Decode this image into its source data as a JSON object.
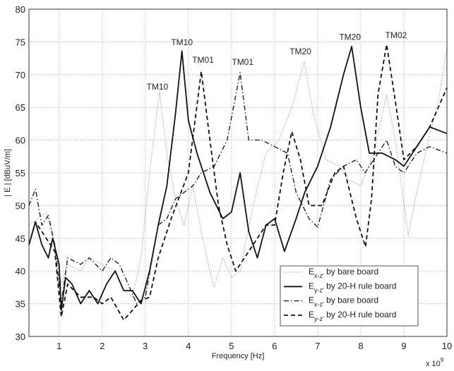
{
  "chart_data": {
    "type": "line",
    "xlabel": "Frequency [Hz]",
    "x_multiplier": "x 10",
    "x_multiplier_exp": "9",
    "ylabel": "| E | [dBuV/m]",
    "xlim": [
      0.3,
      10
    ],
    "ylim": [
      30,
      80
    ],
    "xticks": [
      1,
      2,
      3,
      4,
      5,
      6,
      7,
      8,
      9,
      10
    ],
    "yticks": [
      30,
      35,
      40,
      45,
      50,
      55,
      60,
      65,
      70,
      75,
      80
    ],
    "grid": true,
    "legend_position": "bottom-right",
    "series": [
      {
        "legend": {
          "main": "E",
          "sub": "x-z'",
          "rest": " by bare board"
        },
        "style": "dotted",
        "color": "#8a8a8a",
        "points": [
          [
            0.3,
            47
          ],
          [
            0.5,
            48
          ],
          [
            0.7,
            49
          ],
          [
            0.9,
            44
          ],
          [
            1.05,
            38
          ],
          [
            1.2,
            41
          ],
          [
            1.5,
            40
          ],
          [
            1.7,
            42
          ],
          [
            2.0,
            41
          ],
          [
            2.3,
            40
          ],
          [
            2.5,
            37
          ],
          [
            2.7,
            36
          ],
          [
            2.9,
            42
          ],
          [
            3.1,
            55
          ],
          [
            3.33,
            67.4
          ],
          [
            3.5,
            58
          ],
          [
            3.7,
            51
          ],
          [
            3.9,
            47
          ],
          [
            4.1,
            53
          ],
          [
            4.3,
            46
          ],
          [
            4.5,
            40
          ],
          [
            4.6,
            37.5
          ],
          [
            4.8,
            42
          ],
          [
            5.0,
            39
          ],
          [
            5.2,
            40
          ],
          [
            5.5,
            50
          ],
          [
            5.8,
            58
          ],
          [
            6.1,
            60
          ],
          [
            6.4,
            65
          ],
          [
            6.69,
            72
          ],
          [
            6.9,
            64
          ],
          [
            7.2,
            57
          ],
          [
            7.5,
            56
          ],
          [
            7.7,
            54
          ],
          [
            8.0,
            53
          ],
          [
            8.3,
            58
          ],
          [
            8.6,
            66.9
          ],
          [
            8.8,
            60
          ],
          [
            9.1,
            45.5
          ],
          [
            9.3,
            52
          ],
          [
            9.5,
            58
          ],
          [
            9.8,
            66
          ],
          [
            10,
            74
          ]
        ]
      },
      {
        "legend": {
          "main": "E",
          "sub": "y-z'",
          "rest": " by 20-H rule board"
        },
        "style": "solid",
        "color": "#111111",
        "points": [
          [
            0.3,
            44
          ],
          [
            0.45,
            47.5
          ],
          [
            0.6,
            44
          ],
          [
            0.75,
            42
          ],
          [
            0.85,
            45
          ],
          [
            1.0,
            41
          ],
          [
            1.05,
            34
          ],
          [
            1.15,
            39
          ],
          [
            1.3,
            38
          ],
          [
            1.5,
            35
          ],
          [
            1.7,
            37
          ],
          [
            1.9,
            35
          ],
          [
            2.1,
            38
          ],
          [
            2.3,
            40
          ],
          [
            2.5,
            37
          ],
          [
            2.7,
            37
          ],
          [
            2.9,
            35
          ],
          [
            3.1,
            40
          ],
          [
            3.3,
            47
          ],
          [
            3.5,
            53
          ],
          [
            3.7,
            64
          ],
          [
            3.85,
            73.6
          ],
          [
            4.0,
            63
          ],
          [
            4.2,
            58
          ],
          [
            4.5,
            52
          ],
          [
            4.8,
            48
          ],
          [
            5.0,
            49
          ],
          [
            5.2,
            55
          ],
          [
            5.4,
            46
          ],
          [
            5.6,
            42
          ],
          [
            5.8,
            47
          ],
          [
            6.0,
            48
          ],
          [
            6.23,
            43
          ],
          [
            6.5,
            48
          ],
          [
            6.7,
            52
          ],
          [
            7.0,
            56
          ],
          [
            7.3,
            62
          ],
          [
            7.6,
            70
          ],
          [
            7.79,
            74.3
          ],
          [
            8.0,
            65
          ],
          [
            8.2,
            58
          ],
          [
            8.5,
            58
          ],
          [
            8.8,
            57
          ],
          [
            9.0,
            56
          ],
          [
            9.3,
            59
          ],
          [
            9.6,
            62
          ],
          [
            10,
            61
          ]
        ]
      },
      {
        "legend": {
          "main": "E",
          "sub": "x-z'",
          "rest": " by bare board"
        },
        "style": "dashdot",
        "color": "#222222",
        "points": [
          [
            0.3,
            50
          ],
          [
            0.45,
            52.5
          ],
          [
            0.6,
            47
          ],
          [
            0.75,
            48.5
          ],
          [
            0.9,
            44
          ],
          [
            1.05,
            35
          ],
          [
            1.2,
            42
          ],
          [
            1.5,
            41
          ],
          [
            1.7,
            42
          ],
          [
            2.0,
            40
          ],
          [
            2.2,
            42
          ],
          [
            2.4,
            41
          ],
          [
            2.6,
            38
          ],
          [
            2.8,
            35
          ],
          [
            3.0,
            36
          ],
          [
            3.3,
            47
          ],
          [
            3.5,
            48
          ],
          [
            3.7,
            51
          ],
          [
            3.9,
            52
          ],
          [
            4.1,
            53
          ],
          [
            4.3,
            55
          ],
          [
            4.6,
            56
          ],
          [
            4.9,
            60
          ],
          [
            5.2,
            70.3
          ],
          [
            5.4,
            60
          ],
          [
            5.7,
            60
          ],
          [
            6.0,
            59
          ],
          [
            6.3,
            58
          ],
          [
            6.5,
            52
          ],
          [
            6.8,
            48
          ],
          [
            7.0,
            46.7
          ],
          [
            7.3,
            54
          ],
          [
            7.6,
            56
          ],
          [
            7.9,
            57
          ],
          [
            8.1,
            55
          ],
          [
            8.4,
            58
          ],
          [
            8.6,
            60
          ],
          [
            8.8,
            56
          ],
          [
            9.0,
            55
          ],
          [
            9.3,
            58
          ],
          [
            9.6,
            59
          ],
          [
            10,
            58
          ]
        ]
      },
      {
        "legend": {
          "main": "E",
          "sub": "y-z'",
          "rest": " by 20-H rule board"
        },
        "style": "dashed",
        "color": "#111111",
        "points": [
          [
            0.3,
            44
          ],
          [
            0.45,
            47.5
          ],
          [
            0.7,
            45
          ],
          [
            0.9,
            43
          ],
          [
            1.05,
            33
          ],
          [
            1.2,
            38
          ],
          [
            1.5,
            36
          ],
          [
            1.8,
            36
          ],
          [
            2.0,
            35
          ],
          [
            2.2,
            36
          ],
          [
            2.5,
            32.5
          ],
          [
            2.7,
            34
          ],
          [
            2.9,
            35.5
          ],
          [
            3.1,
            36
          ],
          [
            3.3,
            42
          ],
          [
            3.6,
            48
          ],
          [
            4.0,
            55
          ],
          [
            4.3,
            70.5
          ],
          [
            4.5,
            60
          ],
          [
            4.7,
            50
          ],
          [
            4.9,
            44
          ],
          [
            5.1,
            40
          ],
          [
            5.3,
            42
          ],
          [
            5.5,
            44
          ],
          [
            5.8,
            47
          ],
          [
            6.0,
            47
          ],
          [
            6.2,
            55
          ],
          [
            6.4,
            61.3
          ],
          [
            6.6,
            57
          ],
          [
            6.8,
            50
          ],
          [
            7.1,
            50
          ],
          [
            7.4,
            55
          ],
          [
            7.6,
            56
          ],
          [
            7.9,
            48
          ],
          [
            8.11,
            43.7
          ],
          [
            8.25,
            51
          ],
          [
            8.4,
            67
          ],
          [
            8.6,
            74.6
          ],
          [
            8.8,
            66
          ],
          [
            9.0,
            57
          ],
          [
            9.3,
            59
          ],
          [
            9.6,
            62
          ],
          [
            10,
            68
          ]
        ]
      }
    ],
    "annotations": [
      {
        "text": "TM10",
        "x": 3.28,
        "y": 67.7
      },
      {
        "text": "TM10",
        "x": 3.85,
        "y": 74.5
      },
      {
        "text": "TM01",
        "x": 4.34,
        "y": 71.8
      },
      {
        "text": "TM01",
        "x": 5.26,
        "y": 71.5
      },
      {
        "text": "TM20",
        "x": 6.6,
        "y": 73.1
      },
      {
        "text": "TM20",
        "x": 7.75,
        "y": 75.3
      },
      {
        "text": "TM02",
        "x": 8.82,
        "y": 75.6
      }
    ]
  }
}
